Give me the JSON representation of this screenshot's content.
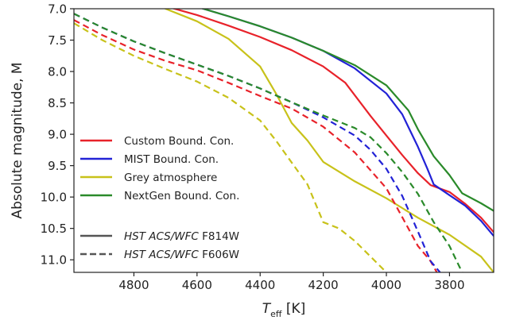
{
  "chart_data": {
    "type": "line",
    "xlabel": "T",
    "xlabel_sub": "eff",
    "xlabel_unit": " [K]",
    "ylabel": "Absolute magnitude, M",
    "xlim": [
      4990,
      3660
    ],
    "ylim": [
      7.0,
      11.2
    ],
    "x_inverted": true,
    "y_inverted": true,
    "x_ticks": [
      4800,
      4600,
      4400,
      4200,
      4000,
      3800
    ],
    "x_tick_labels": [
      "4800",
      "4600",
      "4400",
      "4200",
      "4000",
      "3800"
    ],
    "y_ticks": [
      7.0,
      7.5,
      8.0,
      8.5,
      9.0,
      9.5,
      10.0,
      10.5,
      11.0
    ],
    "y_tick_labels": [
      "7.0",
      "7.5",
      "8.0",
      "8.5",
      "9.0",
      "9.5",
      "10.0",
      "10.5",
      "11.0"
    ],
    "grid": false,
    "legend_placement": "lower-left",
    "legend": {
      "models": [
        {
          "label": "Custom Bound. Con.",
          "color": "#e8222a"
        },
        {
          "label": "MIST Bound. Con.",
          "color": "#2222d6"
        },
        {
          "label": "Grey atmosphere",
          "color": "#c8c21a"
        },
        {
          "label": "NextGen Bound. Con.",
          "color": "#2a8a2a"
        }
      ],
      "filters": [
        {
          "prefix": "HST ACS/WFC",
          "suffix": " F814W",
          "style": "solid"
        },
        {
          "prefix": "HST ACS/WFC",
          "suffix": " F606W",
          "style": "dashed"
        }
      ]
    },
    "series": [
      {
        "model": "Custom Bound. Con.",
        "filter": "F814W",
        "color": "#e8222a",
        "style": "solid",
        "x": [
          4990,
          4700,
          4600,
          4500,
          4400,
          4300,
          4200,
          4130,
          4050,
          4000,
          3950,
          3900,
          3860,
          3800,
          3750,
          3700,
          3660
        ],
        "y": [
          6.62,
          6.96,
          7.1,
          7.27,
          7.45,
          7.66,
          7.92,
          8.18,
          8.71,
          9.02,
          9.33,
          9.62,
          9.81,
          9.92,
          10.11,
          10.33,
          10.56
        ]
      },
      {
        "model": "MIST Bound. Con.",
        "filter": "F814W",
        "color": "#2222d6",
        "style": "solid",
        "x": [
          4990,
          4700,
          4600,
          4500,
          4400,
          4300,
          4200,
          4100,
          4000,
          3950,
          3900,
          3870,
          3850,
          3800,
          3750,
          3700,
          3660
        ],
        "y": [
          6.5,
          6.85,
          6.97,
          7.12,
          7.28,
          7.46,
          7.67,
          7.95,
          8.35,
          8.68,
          9.2,
          9.55,
          9.8,
          9.97,
          10.14,
          10.38,
          10.62
        ]
      },
      {
        "model": "Grey atmosphere",
        "filter": "F814W",
        "color": "#c8c21a",
        "style": "solid",
        "x": [
          4990,
          4700,
          4600,
          4500,
          4400,
          4350,
          4300,
          4250,
          4200,
          4100,
          4000,
          3900,
          3800,
          3700,
          3660
        ],
        "y": [
          6.1,
          7.0,
          7.2,
          7.48,
          7.92,
          8.35,
          8.82,
          9.1,
          9.44,
          9.75,
          10.02,
          10.33,
          10.6,
          10.95,
          11.2
        ]
      },
      {
        "model": "NextGen Bound. Con.",
        "filter": "F814W",
        "color": "#2a8a2a",
        "style": "solid",
        "x": [
          4990,
          4700,
          4600,
          4500,
          4400,
          4300,
          4200,
          4100,
          4000,
          3930,
          3900,
          3850,
          3800,
          3760,
          3700,
          3660
        ],
        "y": [
          6.5,
          6.85,
          6.97,
          7.12,
          7.28,
          7.46,
          7.67,
          7.9,
          8.22,
          8.62,
          8.92,
          9.35,
          9.65,
          9.94,
          10.1,
          10.22
        ]
      },
      {
        "model": "Custom Bound. Con.",
        "filter": "F606W",
        "color": "#e8222a",
        "style": "dashed",
        "x": [
          4990,
          4900,
          4800,
          4700,
          4600,
          4500,
          4400,
          4300,
          4200,
          4100,
          4000,
          3950,
          3900,
          3860,
          3840
        ],
        "y": [
          7.18,
          7.42,
          7.65,
          7.83,
          7.98,
          8.18,
          8.39,
          8.59,
          8.88,
          9.29,
          9.86,
          10.32,
          10.78,
          11.02,
          11.2
        ]
      },
      {
        "model": "MIST Bound. Con.",
        "filter": "F606W",
        "color": "#2222d6",
        "style": "dashed",
        "x": [
          4990,
          4900,
          4800,
          4700,
          4600,
          4500,
          4400,
          4300,
          4200,
          4100,
          4050,
          4000,
          3950,
          3900,
          3860,
          3830
        ],
        "y": [
          7.08,
          7.3,
          7.52,
          7.71,
          7.89,
          8.07,
          8.27,
          8.49,
          8.73,
          9.02,
          9.25,
          9.55,
          9.98,
          10.55,
          11.02,
          11.2
        ]
      },
      {
        "model": "Grey atmosphere",
        "filter": "F606W",
        "color": "#c8c21a",
        "style": "dashed",
        "x": [
          4990,
          4900,
          4800,
          4700,
          4600,
          4500,
          4400,
          4350,
          4300,
          4250,
          4200,
          4150,
          4100,
          4050,
          4000
        ],
        "y": [
          7.23,
          7.5,
          7.75,
          7.96,
          8.16,
          8.42,
          8.78,
          9.1,
          9.45,
          9.8,
          10.4,
          10.5,
          10.7,
          10.95,
          11.2
        ]
      },
      {
        "model": "NextGen Bound. Con.",
        "filter": "F606W",
        "color": "#2a8a2a",
        "style": "dashed",
        "x": [
          4990,
          4900,
          4800,
          4700,
          4600,
          4500,
          4400,
          4300,
          4200,
          4100,
          4050,
          4000,
          3950,
          3900,
          3850,
          3800,
          3760
        ],
        "y": [
          7.08,
          7.3,
          7.52,
          7.71,
          7.89,
          8.07,
          8.27,
          8.49,
          8.7,
          8.9,
          9.05,
          9.3,
          9.6,
          9.95,
          10.4,
          10.78,
          11.2
        ]
      }
    ]
  }
}
